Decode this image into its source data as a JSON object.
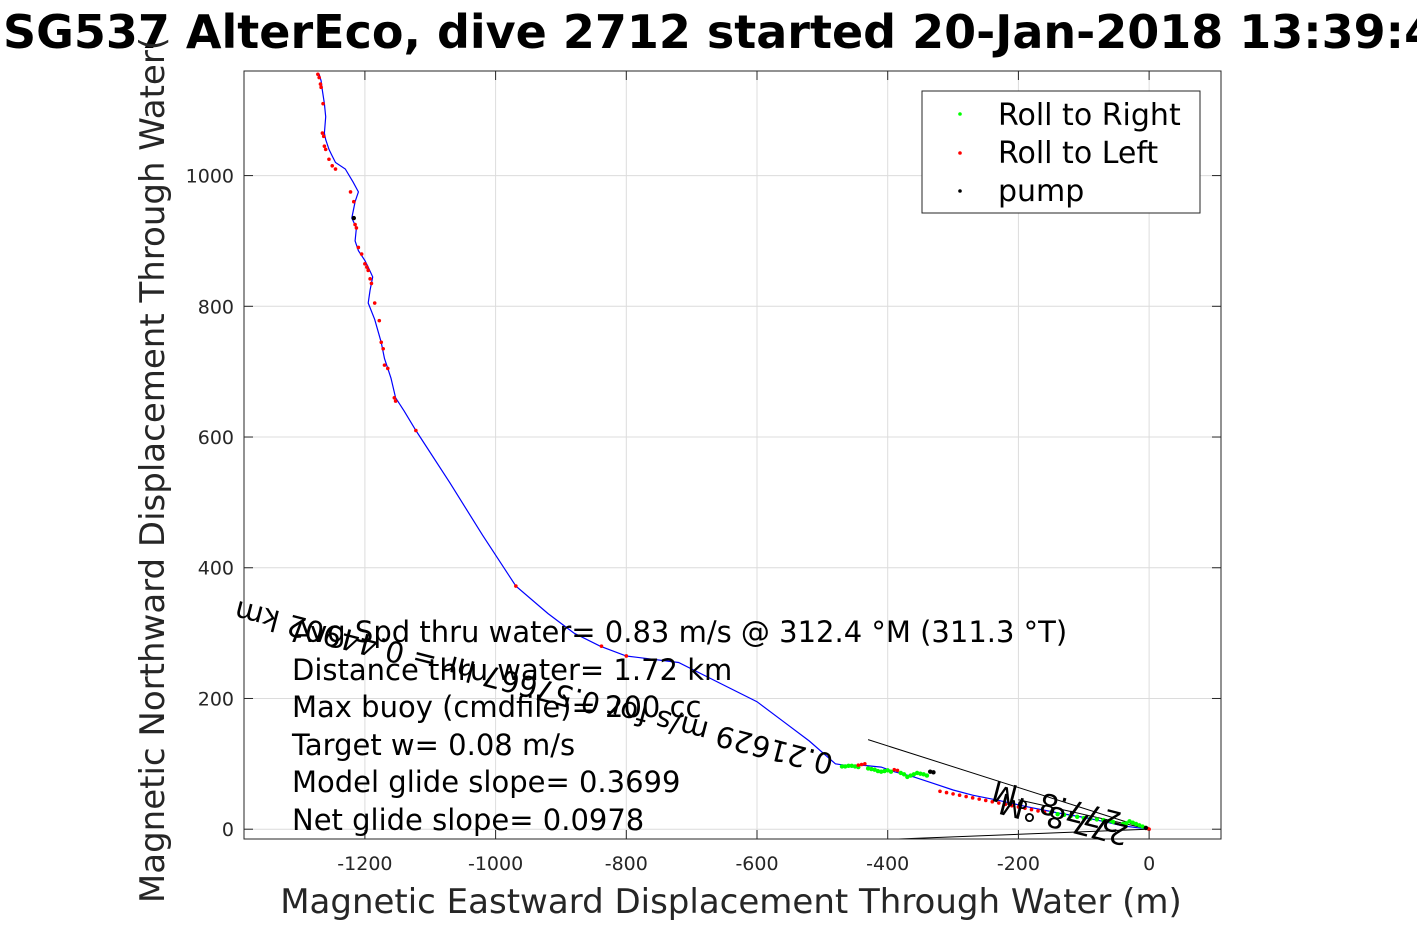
{
  "chart_data": {
    "type": "scatter",
    "title": "SG537 AlterEco, dive 2712 started 20-Jan-2018 13:39:4",
    "xlabel": "Magnetic Eastward Displacement Through Water (m)",
    "ylabel": "Magnetic Northward Displacement Through Water(",
    "xlim": [
      -1385,
      110
    ],
    "ylim": [
      -15,
      1160
    ],
    "xticks": [
      -1200,
      -1000,
      -800,
      -600,
      -400,
      -200,
      0
    ],
    "xtick_labels": [
      "-1200",
      "-1000",
      "-800",
      "-600",
      "-400",
      "-200",
      "0"
    ],
    "yticks": [
      0,
      200,
      400,
      600,
      800,
      1000
    ],
    "ytick_labels": [
      "0",
      "200",
      "400",
      "600",
      "800",
      "1000"
    ],
    "grid": true,
    "legend_position": "top-right",
    "legend": [
      {
        "label": "Roll to Right",
        "color": "#00ff00"
      },
      {
        "label": "Roll to Left",
        "color": "#ff0000"
      },
      {
        "label": "pump",
        "color": "#000000"
      }
    ],
    "track": {
      "name": "track",
      "color": "#0000ff",
      "x": [
        0,
        -40,
        -70,
        -100,
        -140,
        -190,
        -230,
        -270,
        -300,
        -330,
        -360,
        -390,
        -410,
        -440,
        -460,
        -480,
        -520,
        -560,
        -600,
        -660,
        -720,
        -800,
        -840,
        -880,
        -920,
        -969,
        -1020,
        -1070,
        -1122,
        -1140,
        -1153,
        -1160,
        -1165,
        -1170,
        -1175,
        -1185,
        -1195,
        -1192,
        -1188,
        -1195,
        -1200,
        -1210,
        -1215,
        -1213,
        -1220,
        -1215,
        -1210,
        -1218,
        -1230,
        -1245,
        -1250,
        -1255,
        -1260,
        -1262,
        -1260,
        -1262,
        -1265,
        -1267,
        -1270
      ],
      "y": [
        0,
        5,
        12,
        18,
        25,
        35,
        44,
        52,
        60,
        70,
        80,
        88,
        95,
        98,
        97,
        100,
        135,
        165,
        195,
        225,
        255,
        265,
        280,
        300,
        330,
        372,
        450,
        530,
        610,
        640,
        660,
        690,
        705,
        720,
        745,
        780,
        805,
        825,
        845,
        860,
        870,
        885,
        900,
        920,
        935,
        960,
        975,
        990,
        1010,
        1020,
        1030,
        1040,
        1055,
        1065,
        1090,
        1110,
        1130,
        1145,
        1155
      ]
    },
    "roll_right": {
      "name": "Roll to Right",
      "x": [
        -5,
        -10,
        -15,
        -20,
        -25,
        -30,
        -35,
        -40,
        -55,
        -60,
        -70,
        -80,
        -90,
        -100,
        -110,
        -120,
        -130,
        -140,
        -150,
        -340,
        -345,
        -350,
        -355,
        -360,
        -365,
        -370,
        -375,
        -380,
        -395,
        -400,
        -405,
        -410,
        -415,
        -420,
        -425,
        -430,
        -445,
        -450,
        -455,
        -460,
        -465,
        -470
      ],
      "y": [
        2,
        4,
        6,
        8,
        10,
        12,
        9,
        8,
        11,
        13,
        14,
        15,
        16,
        17,
        19,
        20,
        22,
        23,
        25,
        82,
        84,
        85,
        86,
        84,
        82,
        80,
        84,
        86,
        88,
        90,
        89,
        88,
        89,
        91,
        92,
        93,
        95,
        96,
        97,
        97,
        96,
        96
      ]
    },
    "roll_left": {
      "name": "Roll to Left",
      "x": [
        0,
        -2,
        -160,
        -170,
        -180,
        -190,
        -200,
        -210,
        -220,
        -230,
        -240,
        -250,
        -260,
        -270,
        -280,
        -290,
        -300,
        -310,
        -320,
        -385,
        -390,
        -435,
        -440,
        -445,
        -838,
        -800,
        -969,
        -1122,
        -1153,
        -1155,
        -1165,
        -1170,
        -1172,
        -1175,
        -1178,
        -1185,
        -1190,
        -1192,
        -1195,
        -1197,
        -1200,
        -1205,
        -1210,
        -1213,
        -1215,
        -1217,
        -1222,
        -1245,
        -1250,
        -1255,
        -1260,
        -1262,
        -1263,
        -1265,
        -1264,
        -1267,
        -1268,
        -1270,
        -1272
      ],
      "y": [
        0,
        1,
        26,
        28,
        30,
        32,
        34,
        36,
        38,
        40,
        42,
        44,
        46,
        48,
        50,
        52,
        54,
        56,
        58,
        90,
        91,
        100,
        99,
        98,
        280,
        265,
        372,
        610,
        655,
        660,
        705,
        710,
        735,
        745,
        778,
        805,
        835,
        842,
        855,
        860,
        865,
        880,
        890,
        920,
        925,
        960,
        975,
        1010,
        1015,
        1025,
        1040,
        1045,
        1060,
        1065,
        1110,
        1135,
        1140,
        1150,
        1155
      ]
    },
    "pump": {
      "name": "pump",
      "x": [
        -1217,
        -330,
        -335,
        -5
      ],
      "y": [
        935,
        87,
        88,
        2
      ]
    },
    "fan_lines": {
      "color": "#000000",
      "segments": [
        {
          "x1": 0,
          "y1": 0,
          "x2": -430,
          "y2": 137
        },
        {
          "x1": 0,
          "y1": 0,
          "x2": -460,
          "y2": -18
        },
        {
          "x1": 0,
          "y1": 0,
          "x2": -200,
          "y2": 45
        }
      ]
    },
    "rotated_annotations": [
      "0.21629 m/s for 0.57667 hr = 0.44902 km",
      "277.8 °M",
      "277.8 °M"
    ],
    "annotations": [
      "Avg Spd thru water=  0.83 m/s @ 312.4 °M (311.3 °T)",
      "Distance thru water=  1.72 km",
      "Max buoy (cmdfile)= 200 cc",
      "Target w= 0.08 m/s",
      "Model glide slope= 0.3699",
      "Net glide slope= 0.0978"
    ]
  }
}
